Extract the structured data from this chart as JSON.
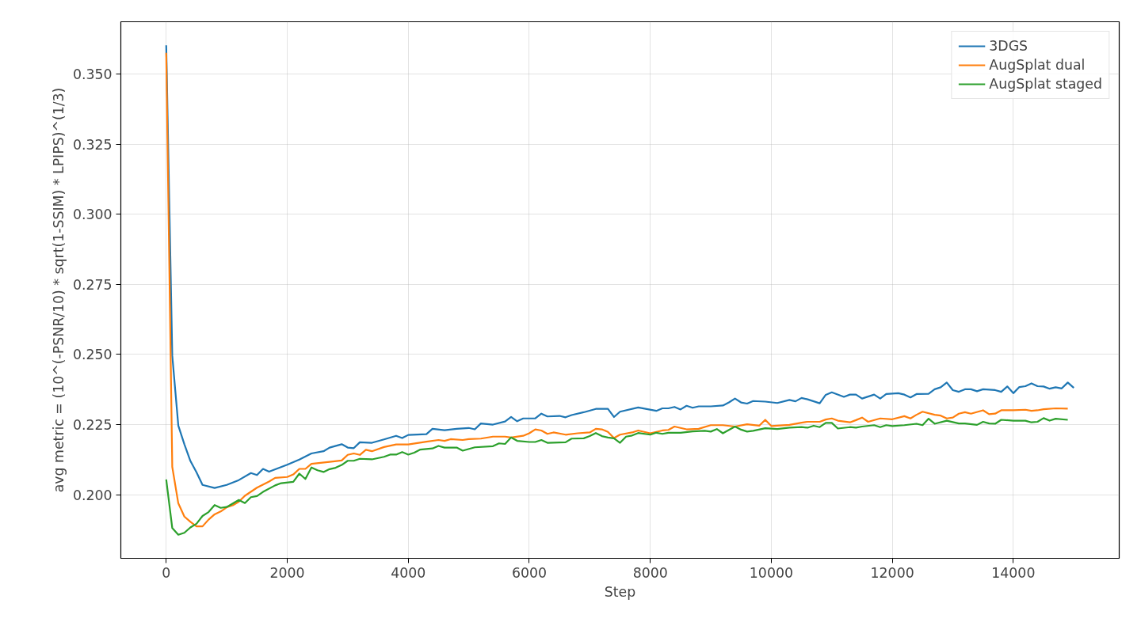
{
  "chart_data": {
    "type": "line",
    "xlabel": "Step",
    "ylabel": "avg metric = (10^(-PSNR/10) * sqrt(1-SSIM) * LPIPS)^(1/3)",
    "xlim": [
      -750,
      15750
    ],
    "ylim": [
      0.1773,
      0.3687
    ],
    "xticks": [
      0,
      2000,
      4000,
      6000,
      8000,
      10000,
      12000,
      14000
    ],
    "yticks": [
      {
        "value": 0.2,
        "label": "0.200"
      },
      {
        "value": 0.225,
        "label": "0.225"
      },
      {
        "value": 0.25,
        "label": "0.250"
      },
      {
        "value": 0.275,
        "label": "0.275"
      },
      {
        "value": 0.3,
        "label": "0.300"
      },
      {
        "value": 0.325,
        "label": "0.325"
      },
      {
        "value": 0.35,
        "label": "0.350"
      }
    ],
    "grid": true,
    "legend": "top right",
    "line_style": "solid",
    "marker": "none",
    "series": [
      {
        "name": "3DGS",
        "color": "#1f77b4",
        "x": [
          0,
          100,
          200,
          300,
          400,
          500,
          600,
          800,
          1000,
          1200,
          1400,
          1500,
          1600,
          1700,
          2000,
          2200,
          2400,
          2600,
          2700,
          2900,
          3000,
          3100,
          3200,
          3400,
          3600,
          3800,
          3900,
          4000,
          4300,
          4400,
          4600,
          4800,
          5000,
          5100,
          5200,
          5400,
          5600,
          5700,
          5800,
          5900,
          6100,
          6200,
          6300,
          6500,
          6600,
          6700,
          6900,
          7100,
          7300,
          7400,
          7500,
          7800,
          8100,
          8200,
          8300,
          8400,
          8500,
          8600,
          8700,
          8800,
          9000,
          9200,
          9300,
          9400,
          9500,
          9600,
          9700,
          9900,
          10100,
          10300,
          10400,
          10500,
          10600,
          10800,
          10900,
          11000,
          11200,
          11300,
          11400,
          11500,
          11700,
          11800,
          11900,
          12100,
          12200,
          12300,
          12400,
          12600,
          12700,
          12800,
          12900,
          13000,
          13100,
          13200,
          13300,
          13400,
          13500,
          13700,
          13800,
          13900,
          14000,
          14100,
          14200,
          14300,
          14400,
          14500,
          14600,
          14700,
          14800,
          14900,
          15000
        ],
        "values": [
          0.3603,
          0.2496,
          0.2246,
          0.218,
          0.212,
          0.208,
          0.2035,
          0.2024,
          0.2035,
          0.2052,
          0.2077,
          0.207,
          0.2092,
          0.2082,
          0.2107,
          0.2125,
          0.2147,
          0.2155,
          0.2168,
          0.218,
          0.2168,
          0.2166,
          0.2187,
          0.2185,
          0.2197,
          0.221,
          0.2202,
          0.2213,
          0.2216,
          0.2235,
          0.223,
          0.2235,
          0.2238,
          0.2233,
          0.2254,
          0.225,
          0.2261,
          0.2277,
          0.2262,
          0.2272,
          0.2272,
          0.2289,
          0.2279,
          0.2281,
          0.2276,
          0.2284,
          0.2294,
          0.2306,
          0.2306,
          0.2277,
          0.2296,
          0.2311,
          0.2299,
          0.2308,
          0.2308,
          0.2313,
          0.2304,
          0.2317,
          0.231,
          0.2315,
          0.2315,
          0.2318,
          0.2329,
          0.2343,
          0.2329,
          0.2325,
          0.2334,
          0.2332,
          0.2327,
          0.2338,
          0.2333,
          0.2345,
          0.234,
          0.2326,
          0.2356,
          0.2365,
          0.2349,
          0.2357,
          0.2357,
          0.2343,
          0.2357,
          0.2343,
          0.2359,
          0.2362,
          0.2357,
          0.2347,
          0.2359,
          0.236,
          0.2376,
          0.2383,
          0.24,
          0.2373,
          0.2367,
          0.2376,
          0.2376,
          0.2369,
          0.2376,
          0.2373,
          0.2367,
          0.2386,
          0.2362,
          0.2384,
          0.2387,
          0.2397,
          0.2387,
          0.2386,
          0.2378,
          0.2383,
          0.2379,
          0.24,
          0.2381
        ]
      },
      {
        "name": "AugSplat dual",
        "color": "#ff7f0e",
        "x": [
          0,
          100,
          200,
          300,
          400,
          500,
          600,
          700,
          800,
          900,
          1000,
          1100,
          1200,
          1300,
          1500,
          1700,
          1800,
          2000,
          2100,
          2200,
          2300,
          2400,
          2700,
          2900,
          3000,
          3100,
          3200,
          3300,
          3400,
          3600,
          3800,
          4000,
          4300,
          4500,
          4600,
          4700,
          4900,
          5000,
          5200,
          5400,
          5600,
          5700,
          5900,
          6000,
          6100,
          6200,
          6300,
          6400,
          6600,
          6800,
          7000,
          7100,
          7200,
          7300,
          7400,
          7500,
          7700,
          7800,
          8000,
          8200,
          8300,
          8400,
          8600,
          8800,
          9000,
          9200,
          9400,
          9600,
          9800,
          9900,
          10000,
          10300,
          10500,
          10600,
          10800,
          10900,
          11000,
          11100,
          11300,
          11400,
          11500,
          11600,
          11800,
          12000,
          12200,
          12300,
          12400,
          12500,
          12700,
          12800,
          12900,
          13000,
          13100,
          13200,
          13300,
          13500,
          13600,
          13700,
          13800,
          14000,
          14200,
          14300,
          14400,
          14500,
          14700,
          14900
        ],
        "values": [
          0.3576,
          0.2099,
          0.1969,
          0.1922,
          0.1903,
          0.1887,
          0.1887,
          0.1911,
          0.193,
          0.194,
          0.1955,
          0.1962,
          0.1975,
          0.1996,
          0.2025,
          0.2047,
          0.206,
          0.2063,
          0.2072,
          0.2092,
          0.2092,
          0.211,
          0.2117,
          0.2122,
          0.2142,
          0.2147,
          0.2142,
          0.216,
          0.2155,
          0.217,
          0.2179,
          0.2179,
          0.2189,
          0.2195,
          0.2192,
          0.2198,
          0.2195,
          0.2198,
          0.22,
          0.2207,
          0.2207,
          0.2204,
          0.221,
          0.2219,
          0.2233,
          0.2229,
          0.2217,
          0.2222,
          0.2214,
          0.2219,
          0.2222,
          0.2235,
          0.2233,
          0.2224,
          0.2202,
          0.2214,
          0.2222,
          0.2229,
          0.2219,
          0.2229,
          0.2231,
          0.2243,
          0.2233,
          0.2235,
          0.2248,
          0.2248,
          0.2243,
          0.2251,
          0.2246,
          0.2267,
          0.2245,
          0.2249,
          0.2257,
          0.226,
          0.226,
          0.2268,
          0.2272,
          0.2264,
          0.2258,
          0.2266,
          0.2275,
          0.226,
          0.2272,
          0.2269,
          0.228,
          0.2272,
          0.2285,
          0.2296,
          0.2285,
          0.2282,
          0.2272,
          0.2275,
          0.2289,
          0.2294,
          0.2289,
          0.2301,
          0.2287,
          0.2289,
          0.2301,
          0.2301,
          0.2303,
          0.2299,
          0.2301,
          0.2305,
          0.2308,
          0.2307
        ]
      },
      {
        "name": "AugSplat staged",
        "color": "#2ca02c",
        "x": [
          0,
          100,
          200,
          300,
          400,
          500,
          600,
          700,
          800,
          900,
          1000,
          1200,
          1300,
          1400,
          1500,
          1600,
          1800,
          1900,
          2100,
          2200,
          2300,
          2400,
          2500,
          2600,
          2700,
          2800,
          2900,
          3000,
          3100,
          3200,
          3400,
          3600,
          3700,
          3800,
          3900,
          4000,
          4100,
          4200,
          4400,
          4500,
          4600,
          4800,
          4900,
          5100,
          5400,
          5500,
          5600,
          5700,
          5800,
          6000,
          6100,
          6200,
          6300,
          6600,
          6700,
          6900,
          7000,
          7100,
          7200,
          7300,
          7400,
          7500,
          7600,
          7700,
          7800,
          8000,
          8100,
          8200,
          8300,
          8500,
          8700,
          8900,
          9000,
          9100,
          9200,
          9400,
          9500,
          9600,
          9700,
          9900,
          10100,
          10300,
          10500,
          10600,
          10700,
          10800,
          10900,
          11000,
          11100,
          11300,
          11400,
          11500,
          11700,
          11800,
          11900,
          12000,
          12200,
          12400,
          12500,
          12600,
          12700,
          12900,
          13100,
          13200,
          13400,
          13500,
          13600,
          13700,
          13800,
          14000,
          14200,
          14300,
          14400,
          14500,
          14600,
          14700,
          14900
        ],
        "values": [
          0.2054,
          0.1881,
          0.1857,
          0.1864,
          0.1883,
          0.1896,
          0.1924,
          0.1938,
          0.1963,
          0.1953,
          0.1956,
          0.1981,
          0.197,
          0.1991,
          0.1995,
          0.201,
          0.2033,
          0.2041,
          0.2046,
          0.2075,
          0.2056,
          0.2097,
          0.2087,
          0.2081,
          0.2091,
          0.2096,
          0.2106,
          0.2121,
          0.2121,
          0.2128,
          0.2126,
          0.2135,
          0.2143,
          0.2143,
          0.2152,
          0.2143,
          0.215,
          0.2161,
          0.2165,
          0.2174,
          0.2168,
          0.2168,
          0.2157,
          0.2169,
          0.2173,
          0.2183,
          0.2181,
          0.2204,
          0.2192,
          0.2188,
          0.2188,
          0.2195,
          0.2185,
          0.2187,
          0.22,
          0.2201,
          0.2209,
          0.222,
          0.2209,
          0.2204,
          0.2201,
          0.2185,
          0.2207,
          0.2211,
          0.222,
          0.2214,
          0.2221,
          0.2217,
          0.2221,
          0.2221,
          0.2226,
          0.2228,
          0.2225,
          0.2234,
          0.2219,
          0.2243,
          0.2232,
          0.2225,
          0.2228,
          0.2237,
          0.2234,
          0.2239,
          0.2241,
          0.2239,
          0.2246,
          0.2241,
          0.2256,
          0.2256,
          0.2236,
          0.2241,
          0.2239,
          0.2243,
          0.2248,
          0.2241,
          0.2248,
          0.2245,
          0.2248,
          0.2253,
          0.2248,
          0.2271,
          0.2253,
          0.2264,
          0.2254,
          0.2254,
          0.2249,
          0.226,
          0.2254,
          0.2253,
          0.2267,
          0.2264,
          0.2264,
          0.2258,
          0.226,
          0.2273,
          0.2264,
          0.2271,
          0.2267
        ]
      }
    ]
  }
}
